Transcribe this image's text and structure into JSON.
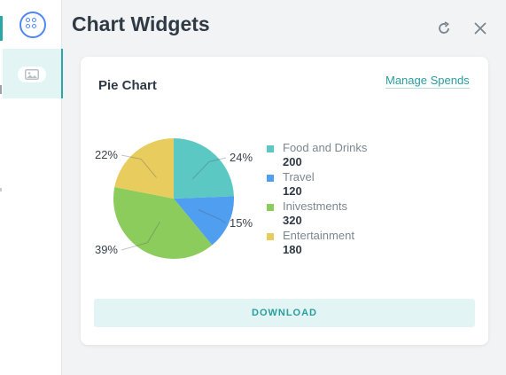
{
  "header": {
    "title": "Chart Widgets"
  },
  "card": {
    "title": "Pie Chart",
    "manage_link": "Manage Spends",
    "download_label": "DOWNLOAD"
  },
  "rail": {
    "items": [
      {
        "icon": "widgets-icon",
        "active": false
      },
      {
        "icon": "image-icon",
        "active": true
      }
    ]
  },
  "colors": {
    "accent": "#2aa8a8",
    "food": "#5bc8c4",
    "travel": "#4f9ef0",
    "investments": "#8ccc5c",
    "entertainment": "#e8cc5e"
  },
  "chart_data": {
    "type": "pie",
    "slices": [
      {
        "name": "Food and Drinks",
        "value": 200,
        "label": "24%",
        "color": "#5bc8c4"
      },
      {
        "name": "Travel",
        "value": 120,
        "label": "15%",
        "color": "#4f9ef0"
      },
      {
        "name": "Inivestments",
        "value": 320,
        "label": "39%",
        "color": "#8ccc5c"
      },
      {
        "name": "Entertainment",
        "value": 180,
        "label": "22%",
        "color": "#e8cc5e"
      }
    ],
    "legend_placement": "right"
  }
}
